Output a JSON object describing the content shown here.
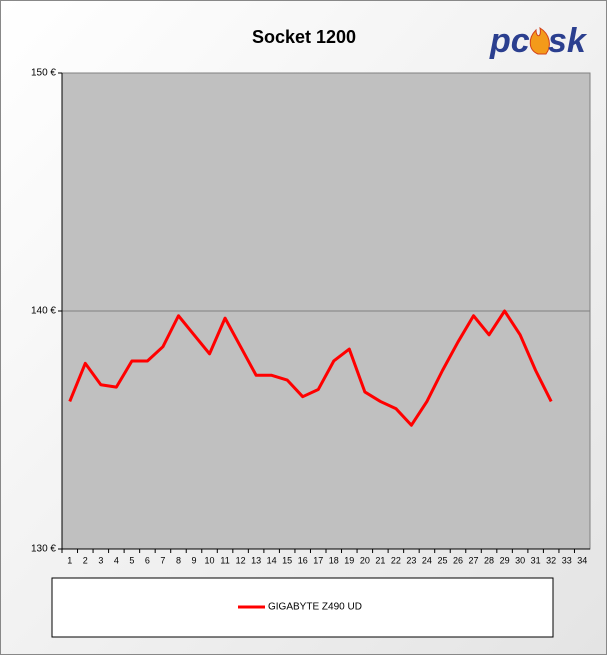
{
  "chart_data": {
    "type": "line",
    "title": "Socket 1200",
    "logo": {
      "left": "pc",
      "right": "sk"
    },
    "categories": [
      "1",
      "2",
      "3",
      "4",
      "5",
      "6",
      "7",
      "8",
      "9",
      "10",
      "11",
      "12",
      "13",
      "14",
      "15",
      "16",
      "17",
      "18",
      "19",
      "20",
      "21",
      "22",
      "23",
      "24",
      "25",
      "26",
      "27",
      "28",
      "29",
      "30",
      "31",
      "32",
      "33",
      "34"
    ],
    "series": [
      {
        "name": "GIGABYTE Z490 UD",
        "color": "#ff0000",
        "values": [
          136.2,
          137.8,
          136.9,
          136.8,
          137.9,
          137.9,
          138.5,
          139.8,
          139.0,
          138.2,
          139.7,
          138.5,
          137.3,
          137.3,
          137.1,
          136.4,
          136.7,
          137.9,
          138.4,
          136.6,
          136.2,
          135.9,
          135.2,
          136.2,
          137.5,
          138.7,
          139.8,
          139.0,
          140.0,
          139.0,
          137.5,
          136.2,
          null,
          null
        ]
      }
    ],
    "ylim": [
      130,
      150
    ],
    "yticks": [
      {
        "value": 130,
        "label": "130 €"
      },
      {
        "value": 140,
        "label": "140 €"
      },
      {
        "value": 150,
        "label": "150 €"
      }
    ],
    "grid": true
  }
}
